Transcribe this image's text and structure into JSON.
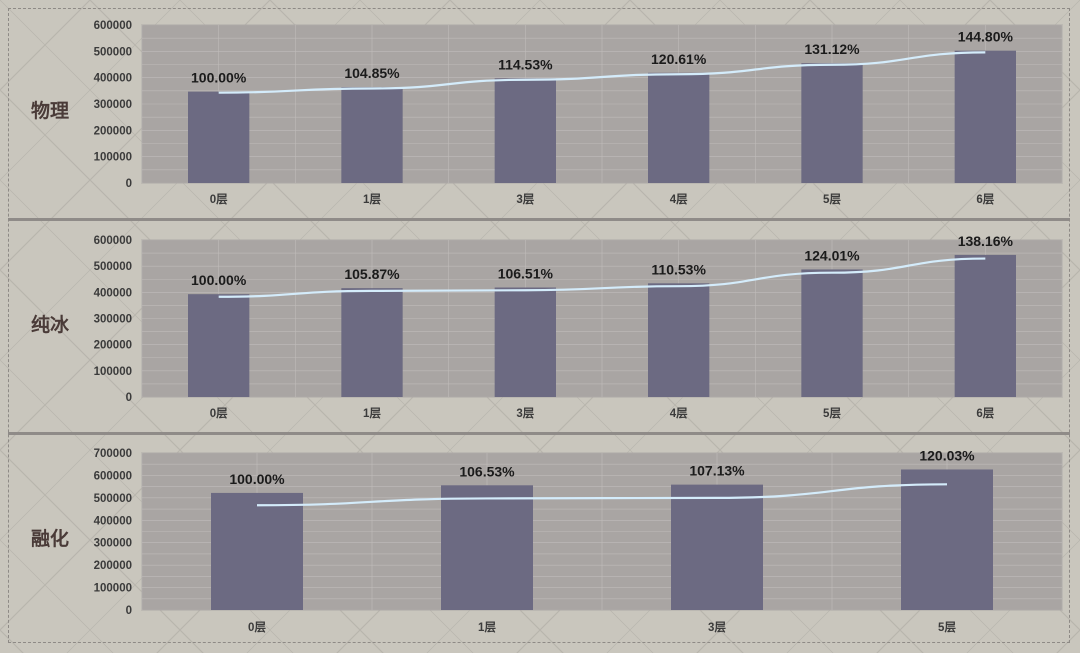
{
  "colors": {
    "background": "#c9c6bd",
    "plot_area": "#a9a5a3",
    "bar": "#6c6a82",
    "line": "#d4ecfb",
    "grid": "#c0bcba",
    "label_text": "#4a3b38"
  },
  "chart_data": [
    {
      "type": "bar",
      "row_label": "物理",
      "categories": [
        "0层",
        "1层",
        "3层",
        "4层",
        "5层",
        "6层"
      ],
      "values": [
        347000,
        364000,
        397500,
        418500,
        455000,
        502500
      ],
      "line_values": [
        343000,
        359000,
        392000,
        413000,
        449000,
        496000
      ],
      "data_labels": [
        "100.00%",
        "104.85%",
        "114.53%",
        "120.61%",
        "131.12%",
        "144.80%"
      ],
      "ylim": [
        0,
        600000
      ],
      "yticks": [
        "0",
        "100000",
        "200000",
        "300000",
        "400000",
        "500000",
        "600000"
      ],
      "grid": true
    },
    {
      "type": "bar",
      "row_label": "纯冰",
      "categories": [
        "0层",
        "1层",
        "3层",
        "4层",
        "5层",
        "6层"
      ],
      "values": [
        393000,
        416000,
        418500,
        434500,
        487500,
        543000
      ],
      "line_values": [
        383000,
        405500,
        408000,
        423500,
        475000,
        529000
      ],
      "data_labels": [
        "100.00%",
        "105.87%",
        "106.51%",
        "110.53%",
        "124.01%",
        "138.16%"
      ],
      "ylim": [
        0,
        600000
      ],
      "yticks": [
        "0",
        "100000",
        "200000",
        "300000",
        "400000",
        "500000",
        "600000"
      ],
      "grid": true
    },
    {
      "type": "bar",
      "row_label": "融化",
      "categories": [
        "0层",
        "1层",
        "3层",
        "5层"
      ],
      "values": [
        522000,
        556000,
        559000,
        626500
      ],
      "line_values": [
        467000,
        497500,
        500000,
        560500
      ],
      "data_labels": [
        "100.00%",
        "106.53%",
        "107.13%",
        "120.03%"
      ],
      "ylim": [
        0,
        700000
      ],
      "yticks": [
        "0",
        "100000",
        "200000",
        "300000",
        "400000",
        "500000",
        "600000",
        "700000"
      ],
      "grid": true
    }
  ]
}
